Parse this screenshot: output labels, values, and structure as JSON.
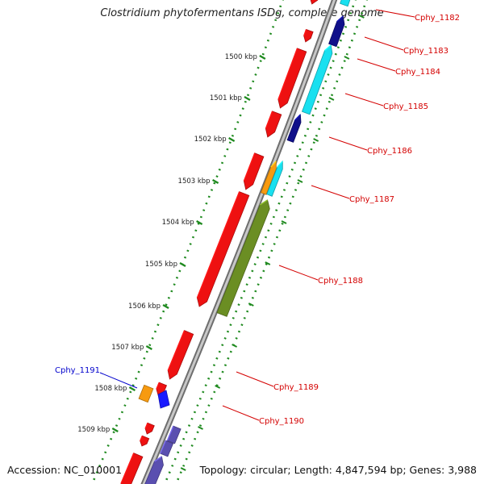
{
  "title": "Clostridium phytofermentans ISDg, complete genome",
  "footer": {
    "accession": "Accession: NC_010001",
    "summary": "Topology: circular; Length: 4,847,594 bp; Genes: 3,988"
  },
  "colors": {
    "backbone": "#8f8f8f",
    "tick": "#1f8a1f",
    "label_red": "#d40000",
    "label_blue": "#0000cc",
    "cds_red": "#ee1111",
    "cyan": "#19e0f0",
    "navy": "#10108a",
    "orange": "#f79a10",
    "olive": "#6b8e23",
    "blue": "#1a1aff",
    "slate": "#5a4fb0"
  },
  "kbp_labels": [
    "1500 kbp",
    "1501 kbp",
    "1502 kbp",
    "1503 kbp",
    "1504 kbp",
    "1505 kbp",
    "1506 kbp",
    "1507 kbp",
    "1508 kbp",
    "1509 kbp"
  ],
  "gene_labels": [
    "Cphy_1182",
    "Cphy_1183",
    "Cphy_1184",
    "Cphy_1185",
    "Cphy_1186",
    "Cphy_1187",
    "Cphy_1188",
    "Cphy_1189",
    "Cphy_1190",
    "Cphy_1191"
  ]
}
